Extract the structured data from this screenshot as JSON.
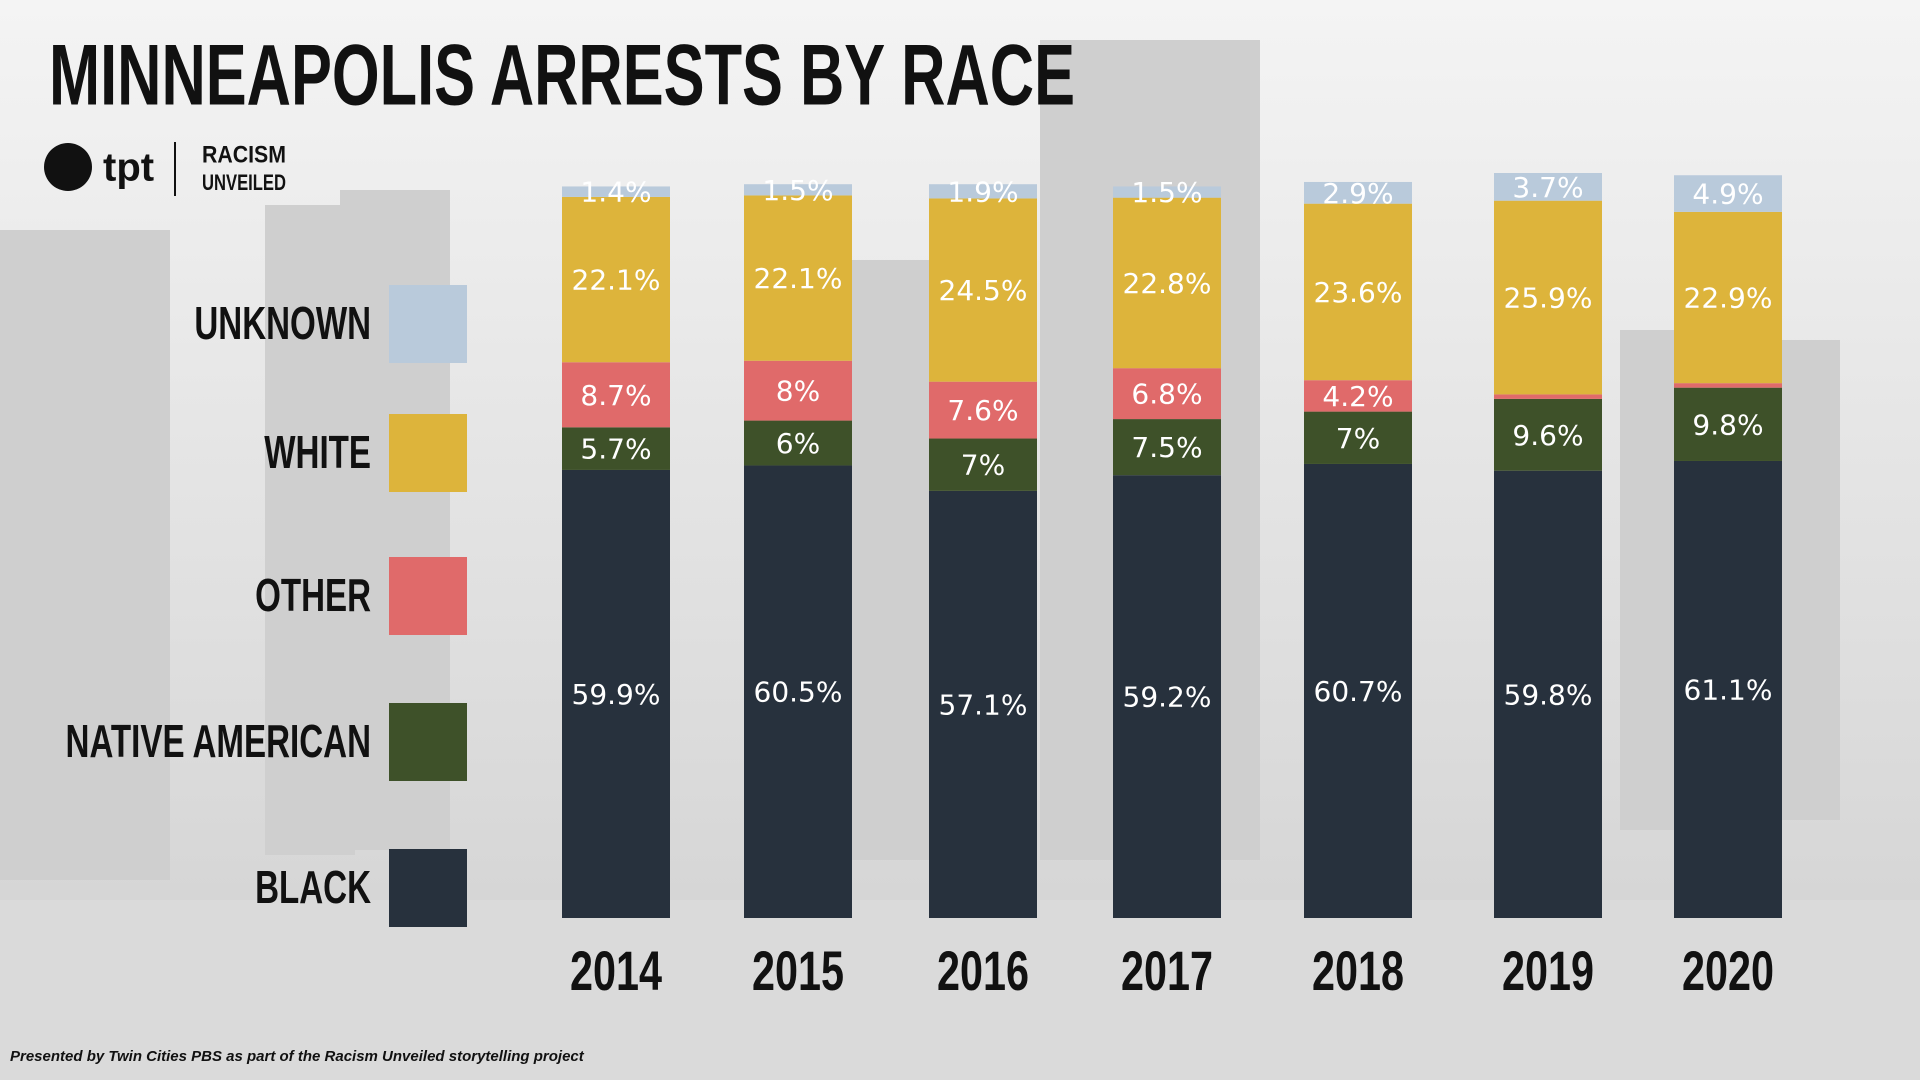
{
  "chart_data": {
    "type": "stacked-bar",
    "title": "MINNEAPOLIS ARRESTS BY RACE",
    "categories": [
      "2014",
      "2015",
      "2016",
      "2017",
      "2018",
      "2019",
      "2020"
    ],
    "ylim": [
      0,
      100
    ],
    "series": [
      {
        "name": "BLACK",
        "color": "#27313d",
        "values": [
          59.9,
          60.5,
          57.1,
          59.2,
          60.7,
          59.8,
          61.1
        ],
        "value_labels": [
          "59.9%",
          "60.5%",
          "57.1%",
          "59.2%",
          "60.7%",
          "59.8%",
          "61.1%"
        ]
      },
      {
        "name": "NATIVE AMERICAN",
        "color": "#3e5129",
        "values": [
          5.7,
          6,
          7,
          7.5,
          7,
          9.6,
          9.8
        ],
        "value_labels": [
          "5.7%",
          "6%",
          "7%",
          "7.5%",
          "7%",
          "9.6%",
          "9.8%"
        ]
      },
      {
        "name": "OTHER",
        "color": "#e06a6a",
        "values": [
          8.7,
          8,
          7.6,
          6.8,
          4.2,
          0.6,
          0.6
        ],
        "value_labels": [
          "8.7%",
          "8%",
          "7.6%",
          "6.8%",
          "4.2%",
          null,
          null
        ]
      },
      {
        "name": "WHITE",
        "color": "#ddb43b",
        "values": [
          22.1,
          22.1,
          24.5,
          22.8,
          23.6,
          25.9,
          22.9
        ],
        "value_labels": [
          "22.1%",
          "22.1%",
          "24.5%",
          "22.8%",
          "23.6%",
          "25.9%",
          "22.9%"
        ]
      },
      {
        "name": "UNKNOWN",
        "color": "#b9cadb",
        "values": [
          1.4,
          1.5,
          1.9,
          1.5,
          2.9,
          3.7,
          4.9
        ],
        "value_labels": [
          "1.4%",
          "1.5%",
          "1.9%",
          "1.5%",
          "2.9%",
          "3.7%",
          "4.9%"
        ]
      }
    ]
  },
  "branding": {
    "logo": "tpt",
    "project": [
      "RACISM",
      "UNVEILED"
    ]
  },
  "footer": "Presented by Twin Cities PBS as part of the Racism Unveiled storytelling project"
}
